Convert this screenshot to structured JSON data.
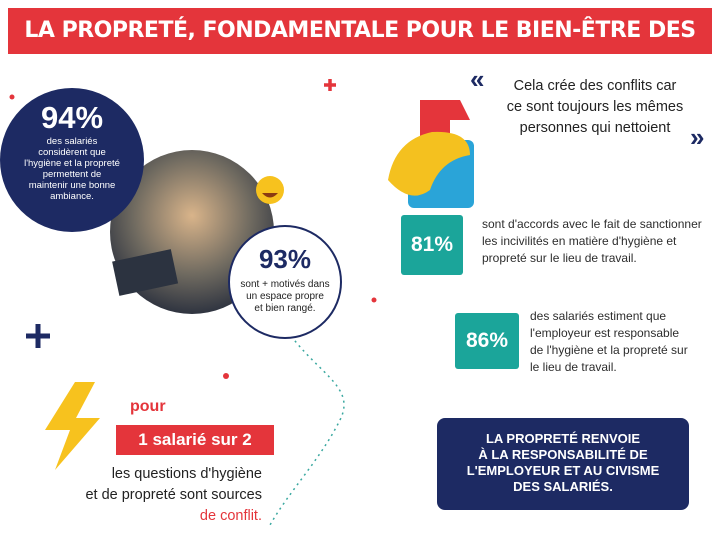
{
  "header": {
    "title": "LA PROPRETÉ, FONDAMENTALE POUR LE BIEN-ÊTRE DES SALARIÉS"
  },
  "stat_94": {
    "value": "94%",
    "lines": [
      "des salariés",
      "considèrent que",
      "l'hygiène et la propreté",
      "permettent de",
      "maintenir une bonne",
      "ambiance."
    ]
  },
  "stat_93": {
    "value": "93%",
    "lines": [
      "sont + motivés dans",
      "un espace propre",
      "et bien rangé."
    ]
  },
  "quote": {
    "open": "«",
    "lines": [
      "Cela crée des conflits car",
      "ce sont toujours les mêmes",
      "personnes qui nettoient"
    ],
    "close": "»"
  },
  "stat_81": {
    "value": "81%",
    "lines": [
      "sont d'accords avec le fait de sanctionner",
      "les incivilités en matière d'hygiène et",
      "propreté sur le lieu de travail."
    ]
  },
  "stat_86": {
    "value": "86%",
    "lines": [
      "des salariés estiment que",
      "l'employeur est responsable",
      "de l'hygiène et la propreté sur",
      "le lieu de travail."
    ]
  },
  "conflict": {
    "intro": "pour",
    "highlight": "1 salarié sur 2",
    "lines": [
      "les questions d'hygiène",
      "et de propreté sont sources"
    ],
    "end": "de conflit."
  },
  "box": {
    "lines": [
      "LA PROPRETÉ RENVOIE",
      "À LA RESPONSABILITÉ DE",
      "L'EMPLOYEUR ET AU CIVISME",
      "DES SALARIÉS."
    ]
  }
}
